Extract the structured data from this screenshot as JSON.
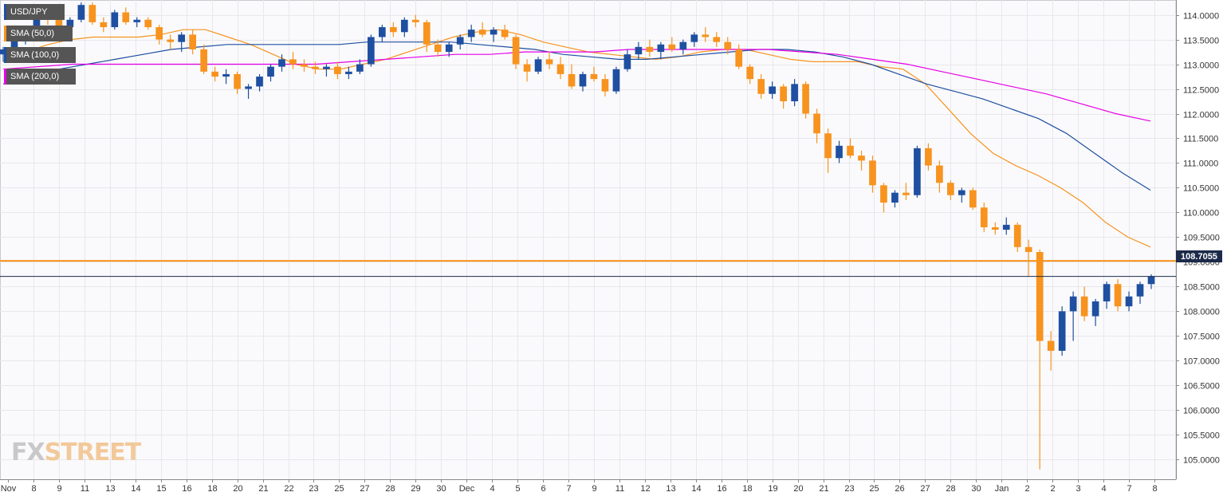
{
  "legend": {
    "symbol": "USD/JPY",
    "sma50": "SMA (50,0)",
    "sma100": "SMA (100,0)",
    "sma200": "SMA (200,0)"
  },
  "colors": {
    "bull": "#1f4fa0",
    "bear": "#f7931e",
    "sma50": "#f7931e",
    "sma100": "#1f4fa0",
    "sma200": "#e600e6",
    "level": "#f7931e",
    "last_price_line": "#1c2a4a",
    "grid": "#e8e8ec"
  },
  "logo": {
    "part1": "FX",
    "part2": "STREET"
  },
  "last_price": {
    "label": "108.7055",
    "value": 108.7055
  },
  "chart_data": {
    "type": "candlestick",
    "title": "USD/JPY",
    "ylim": [
      104.6,
      114.3
    ],
    "y_ticks": [
      "114.0000",
      "113.5000",
      "113.0000",
      "112.5000",
      "112.0000",
      "111.5000",
      "111.0000",
      "110.5000",
      "110.0000",
      "109.5000",
      "109.0000",
      "108.5000",
      "108.0000",
      "107.5000",
      "107.0000",
      "106.5000",
      "106.0000",
      "105.5000",
      "105.0000"
    ],
    "x_ticks": [
      "Nov",
      "8",
      "9",
      "11",
      "13",
      "14",
      "15",
      "16",
      "18",
      "20",
      "21",
      "22",
      "23",
      "25",
      "27",
      "28",
      "29",
      "30",
      "Dec",
      "4",
      "5",
      "6",
      "7",
      "9",
      "11",
      "12",
      "13",
      "14",
      "16",
      "18",
      "19",
      "20",
      "21",
      "23",
      "25",
      "26",
      "27",
      "28",
      "30",
      "Jan",
      "2",
      "2",
      "3",
      "4",
      "7",
      "8"
    ],
    "horizontal_level": 109.02,
    "grid": true,
    "legend_position": "top-left",
    "candles": [
      [
        113.2,
        113.35,
        113.05,
        113.3
      ],
      [
        113.3,
        113.55,
        113.2,
        113.5
      ],
      [
        113.5,
        113.75,
        113.4,
        113.7
      ],
      [
        113.7,
        114.0,
        113.6,
        113.95
      ],
      [
        113.95,
        114.05,
        113.8,
        113.9
      ],
      [
        113.9,
        114.0,
        113.7,
        113.75
      ],
      [
        113.75,
        113.95,
        113.65,
        113.9
      ],
      [
        113.9,
        114.25,
        113.85,
        114.2
      ],
      [
        114.2,
        114.25,
        113.8,
        113.85
      ],
      [
        113.85,
        113.95,
        113.65,
        113.75
      ],
      [
        113.75,
        114.1,
        113.7,
        114.05
      ],
      [
        114.05,
        114.15,
        113.8,
        113.85
      ],
      [
        113.85,
        113.95,
        113.75,
        113.9
      ],
      [
        113.9,
        113.95,
        113.7,
        113.75
      ],
      [
        113.75,
        113.8,
        113.4,
        113.5
      ],
      [
        113.5,
        113.6,
        113.3,
        113.45
      ],
      [
        113.45,
        113.65,
        113.25,
        113.6
      ],
      [
        113.6,
        113.7,
        113.2,
        113.3
      ],
      [
        113.3,
        113.4,
        112.8,
        112.85
      ],
      [
        112.85,
        112.95,
        112.65,
        112.75
      ],
      [
        112.75,
        112.9,
        112.6,
        112.8
      ],
      [
        112.8,
        112.85,
        112.4,
        112.5
      ],
      [
        112.5,
        112.6,
        112.3,
        112.55
      ],
      [
        112.55,
        112.8,
        112.45,
        112.75
      ],
      [
        112.75,
        113.0,
        112.65,
        112.95
      ],
      [
        112.95,
        113.2,
        112.85,
        113.1
      ],
      [
        113.1,
        113.25,
        112.9,
        113.0
      ],
      [
        113.0,
        113.1,
        112.85,
        112.95
      ],
      [
        112.95,
        113.05,
        112.8,
        112.9
      ],
      [
        112.9,
        113.0,
        112.75,
        112.95
      ],
      [
        112.95,
        113.05,
        112.7,
        112.8
      ],
      [
        112.8,
        112.95,
        112.7,
        112.85
      ],
      [
        112.85,
        113.1,
        112.8,
        113.0
      ],
      [
        113.0,
        113.6,
        112.95,
        113.55
      ],
      [
        113.55,
        113.8,
        113.45,
        113.75
      ],
      [
        113.75,
        113.85,
        113.55,
        113.65
      ],
      [
        113.65,
        113.95,
        113.55,
        113.9
      ],
      [
        113.9,
        114.0,
        113.75,
        113.85
      ],
      [
        113.85,
        113.9,
        113.25,
        113.4
      ],
      [
        113.4,
        113.5,
        113.15,
        113.25
      ],
      [
        113.25,
        113.45,
        113.15,
        113.4
      ],
      [
        113.4,
        113.6,
        113.3,
        113.55
      ],
      [
        113.55,
        113.8,
        113.45,
        113.7
      ],
      [
        113.7,
        113.85,
        113.55,
        113.6
      ],
      [
        113.6,
        113.75,
        113.45,
        113.7
      ],
      [
        113.7,
        113.8,
        113.5,
        113.55
      ],
      [
        113.55,
        113.6,
        112.9,
        113.0
      ],
      [
        113.0,
        113.1,
        112.65,
        112.85
      ],
      [
        112.85,
        113.15,
        112.8,
        113.1
      ],
      [
        113.1,
        113.25,
        112.9,
        113.0
      ],
      [
        113.0,
        113.15,
        112.7,
        112.8
      ],
      [
        112.8,
        113.0,
        112.5,
        112.55
      ],
      [
        112.55,
        112.85,
        112.45,
        112.8
      ],
      [
        112.8,
        112.95,
        112.65,
        112.7
      ],
      [
        112.7,
        112.8,
        112.35,
        112.45
      ],
      [
        112.45,
        112.95,
        112.4,
        112.9
      ],
      [
        112.9,
        113.3,
        112.85,
        113.2
      ],
      [
        113.2,
        113.45,
        113.1,
        113.35
      ],
      [
        113.35,
        113.5,
        113.15,
        113.25
      ],
      [
        113.25,
        113.45,
        113.1,
        113.4
      ],
      [
        113.4,
        113.55,
        113.25,
        113.3
      ],
      [
        113.3,
        113.5,
        113.2,
        113.45
      ],
      [
        113.45,
        113.65,
        113.35,
        113.6
      ],
      [
        113.6,
        113.75,
        113.45,
        113.55
      ],
      [
        113.55,
        113.65,
        113.35,
        113.45
      ],
      [
        113.45,
        113.55,
        113.2,
        113.3
      ],
      [
        113.3,
        113.4,
        112.9,
        112.95
      ],
      [
        112.95,
        113.0,
        112.6,
        112.7
      ],
      [
        112.7,
        112.8,
        112.3,
        112.4
      ],
      [
        112.4,
        112.65,
        112.3,
        112.55
      ],
      [
        112.55,
        112.6,
        112.1,
        112.25
      ],
      [
        112.25,
        112.7,
        112.15,
        112.6
      ],
      [
        112.6,
        112.65,
        111.9,
        112.0
      ],
      [
        112.0,
        112.1,
        111.4,
        111.6
      ],
      [
        111.6,
        111.7,
        110.8,
        111.1
      ],
      [
        111.1,
        111.45,
        111.0,
        111.35
      ],
      [
        111.35,
        111.5,
        111.1,
        111.15
      ],
      [
        111.15,
        111.25,
        110.85,
        111.05
      ],
      [
        111.05,
        111.15,
        110.4,
        110.55
      ],
      [
        110.55,
        110.6,
        110.0,
        110.2
      ],
      [
        110.2,
        110.45,
        110.1,
        110.4
      ],
      [
        110.4,
        110.6,
        110.25,
        110.35
      ],
      [
        110.35,
        111.35,
        110.3,
        111.3
      ],
      [
        111.3,
        111.4,
        110.85,
        110.95
      ],
      [
        110.95,
        111.05,
        110.4,
        110.6
      ],
      [
        110.6,
        110.65,
        110.25,
        110.35
      ],
      [
        110.35,
        110.5,
        110.2,
        110.45
      ],
      [
        110.45,
        110.5,
        110.05,
        110.1
      ],
      [
        110.1,
        110.2,
        109.6,
        109.7
      ],
      [
        109.7,
        109.8,
        109.55,
        109.65
      ],
      [
        109.65,
        109.9,
        109.55,
        109.75
      ],
      [
        109.75,
        109.8,
        109.2,
        109.3
      ],
      [
        109.3,
        109.45,
        108.7,
        109.2
      ],
      [
        109.2,
        109.25,
        104.8,
        107.4
      ],
      [
        107.4,
        107.6,
        106.8,
        107.2
      ],
      [
        107.2,
        108.1,
        107.1,
        108.0
      ],
      [
        108.0,
        108.4,
        107.4,
        108.3
      ],
      [
        108.3,
        108.5,
        107.8,
        107.9
      ],
      [
        107.9,
        108.25,
        107.7,
        108.2
      ],
      [
        108.2,
        108.6,
        108.05,
        108.55
      ],
      [
        108.55,
        108.65,
        108.0,
        108.1
      ],
      [
        108.1,
        108.4,
        108.0,
        108.3
      ],
      [
        108.3,
        108.6,
        108.15,
        108.55
      ],
      [
        108.55,
        108.75,
        108.45,
        108.7
      ]
    ],
    "series": [
      {
        "name": "SMA (50,0)",
        "values": [
          113.05,
          113.25,
          113.4,
          113.5,
          113.55,
          113.55,
          113.55,
          113.6,
          113.7,
          113.7,
          113.55,
          113.4,
          113.2,
          113.0,
          112.9,
          112.9,
          113.0,
          113.1,
          113.25,
          113.4,
          113.55,
          113.65,
          113.7,
          113.6,
          113.45,
          113.35,
          113.25,
          113.2,
          113.15,
          113.1,
          113.15,
          113.25,
          113.3,
          113.3,
          113.2,
          113.1,
          113.05,
          113.05,
          113.05,
          112.95,
          112.9,
          112.6,
          112.1,
          111.6,
          111.2,
          110.95,
          110.75,
          110.5,
          110.2,
          109.8,
          109.5,
          109.3
        ]
      },
      {
        "name": "SMA (100,0)",
        "values": [
          112.6,
          112.75,
          112.9,
          113.0,
          113.1,
          113.2,
          113.3,
          113.35,
          113.4,
          113.4,
          113.4,
          113.4,
          113.4,
          113.45,
          113.45,
          113.45,
          113.45,
          113.4,
          113.35,
          113.3,
          113.2,
          113.15,
          113.1,
          113.1,
          113.15,
          113.2,
          113.25,
          113.3,
          113.3,
          113.25,
          113.15,
          113.0,
          112.8,
          112.6,
          112.45,
          112.3,
          112.1,
          111.9,
          111.6,
          111.2,
          110.8,
          110.45
        ]
      },
      {
        "name": "SMA (200,0)",
        "values": [
          112.9,
          112.95,
          113.0,
          113.0,
          113.0,
          113.0,
          113.0,
          113.0,
          113.0,
          113.0,
          113.05,
          113.1,
          113.15,
          113.2,
          113.2,
          113.25,
          113.25,
          113.25,
          113.3,
          113.3,
          113.3,
          113.3,
          113.3,
          113.25,
          113.2,
          113.1,
          113.0,
          112.85,
          112.7,
          112.55,
          112.4,
          112.2,
          112.0,
          111.85
        ]
      }
    ]
  }
}
